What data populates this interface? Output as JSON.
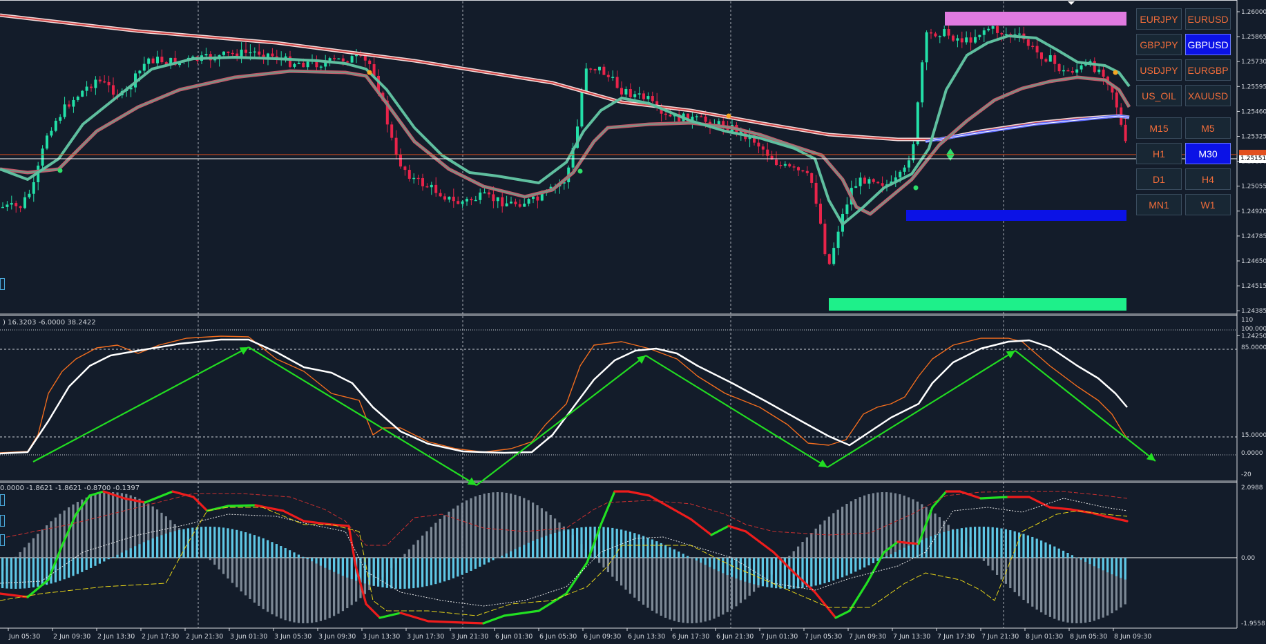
{
  "symbols": [
    "EURJPY",
    "EURUSD",
    "GBPJPY",
    "GBPUSD",
    "USDJPY",
    "EURGBP",
    "US_OIL",
    "XAUUSD"
  ],
  "active_symbol": "GBPUSD",
  "timeframes": [
    "M15",
    "M5",
    "H1",
    "M30",
    "D1",
    "H4",
    "MN1",
    "W1"
  ],
  "active_timeframe": "M30",
  "colors": {
    "background": "#131c2a",
    "bull_candle": "#23e0a8",
    "bear_candle": "#e8244a",
    "button_text": "#f26d3a",
    "active_button": "#0b12e6",
    "grid": "#cfd3d9",
    "sma_slow": "#d34a4a",
    "rsi_fast": "#f26d1e",
    "rsi_slow": "#ffffff",
    "arrows": "#22dd22"
  },
  "price_axis": [
    "1.26000",
    "1.25865",
    "1.25730",
    "1.25595",
    "1.25460",
    "1.25325",
    "1.25190",
    "1.25055",
    "1.24920",
    "1.24785",
    "1.24650",
    "1.24515",
    "1.24385",
    "1.24250"
  ],
  "current_price_label": "1.25151",
  "stoch_axis": [
    "110",
    "100.0000",
    "85.0000",
    "15.0000",
    "0.0000",
    "-20"
  ],
  "stoch_header": ") 16.3203 -6.0000 38.2422",
  "macd_axis": [
    "2.0988",
    "0.00",
    "-1.9558"
  ],
  "macd_header": "0.0000 -1.8621 -1.8621 -0.8700 -0.1397",
  "time_axis": [
    "Jun 05:30",
    "2 Jun 09:30",
    "2 Jun 13:30",
    "2 Jun 17:30",
    "2 Jun 21:30",
    "3 Jun 01:30",
    "3 Jun 05:30",
    "3 Jun 09:30",
    "3 Jun 13:30",
    "3 Jun 17:30",
    "3 Jun 21:30",
    "6 Jun 01:30",
    "6 Jun 05:30",
    "6 Jun 09:30",
    "6 Jun 13:30",
    "6 Jun 17:30",
    "6 Jun 21:30",
    "7 Jun 01:30",
    "7 Jun 05:30",
    "7 Jun 09:30",
    "7 Jun 13:30",
    "7 Jun 17:30",
    "7 Jun 21:30",
    "8 Jun 01:30",
    "8 Jun 05:30",
    "8 Jun 09:30"
  ]
}
